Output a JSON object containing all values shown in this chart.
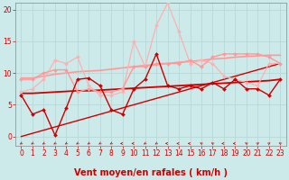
{
  "x": [
    0,
    1,
    2,
    3,
    4,
    5,
    6,
    7,
    8,
    9,
    10,
    11,
    12,
    13,
    14,
    15,
    16,
    17,
    18,
    19,
    20,
    21,
    22,
    23
  ],
  "bg_color": "#cceaea",
  "grid_color": "#aad4d4",
  "xlabel": "Vent moyen/en rafales ( km/h )",
  "xlabel_color": "#cc0000",
  "xlabel_fontsize": 7,
  "ylim": [
    -1.5,
    21
  ],
  "xlim": [
    -0.5,
    23.5
  ],
  "yticks": [
    0,
    5,
    10,
    15,
    20
  ],
  "xticks": [
    0,
    1,
    2,
    3,
    4,
    5,
    6,
    7,
    8,
    9,
    10,
    11,
    12,
    13,
    14,
    15,
    16,
    17,
    18,
    19,
    20,
    21,
    22,
    23
  ],
  "series": [
    {
      "name": "light_pink_jagged",
      "y": [
        7.0,
        7.5,
        9.0,
        12.0,
        11.5,
        12.5,
        8.0,
        6.5,
        6.5,
        7.0,
        15.0,
        11.0,
        17.5,
        21.0,
        16.5,
        11.5,
        12.0,
        11.5,
        9.5,
        9.0,
        8.5,
        8.0,
        11.5,
        11.5
      ],
      "color": "#ffb0b0",
      "lw": 0.9,
      "marker": "D",
      "ms": 2.0
    },
    {
      "name": "pink_trend_upper",
      "y": [
        9.2,
        9.2,
        9.5,
        9.8,
        10.0,
        10.2,
        10.3,
        10.4,
        10.6,
        10.8,
        11.0,
        11.2,
        11.3,
        11.5,
        11.7,
        11.8,
        12.0,
        12.2,
        12.3,
        12.5,
        12.6,
        12.7,
        12.8,
        12.8
      ],
      "color": "#ff9999",
      "lw": 1.2,
      "marker": null,
      "ms": 0
    },
    {
      "name": "pink_jagged",
      "y": [
        9.0,
        9.0,
        10.0,
        10.5,
        10.5,
        7.0,
        7.5,
        7.0,
        7.0,
        7.5,
        11.0,
        11.0,
        11.5,
        11.5,
        11.5,
        12.0,
        11.0,
        12.5,
        13.0,
        13.0,
        13.0,
        13.0,
        12.5,
        11.5
      ],
      "color": "#ff9999",
      "lw": 1.0,
      "marker": "D",
      "ms": 2.0
    },
    {
      "name": "red_trend_upper",
      "y": [
        6.8,
        6.8,
        6.9,
        7.0,
        7.1,
        7.2,
        7.2,
        7.3,
        7.4,
        7.5,
        7.6,
        7.7,
        7.8,
        7.9,
        8.0,
        8.1,
        8.2,
        8.3,
        8.4,
        8.5,
        8.6,
        8.7,
        8.8,
        9.0
      ],
      "color": "#cc0000",
      "lw": 1.3,
      "marker": null,
      "ms": 0
    },
    {
      "name": "red_jagged",
      "y": [
        6.5,
        3.5,
        4.2,
        0.2,
        4.5,
        9.0,
        9.2,
        8.0,
        4.2,
        3.5,
        7.5,
        9.0,
        13.0,
        8.0,
        7.5,
        8.0,
        7.5,
        8.5,
        7.5,
        9.0,
        7.5,
        7.5,
        6.5,
        9.0
      ],
      "color": "#cc0000",
      "lw": 1.0,
      "marker": "D",
      "ms": 2.0
    },
    {
      "name": "red_trend_lower",
      "y": [
        0.0,
        0.5,
        1.0,
        1.5,
        2.0,
        2.5,
        3.0,
        3.5,
        4.0,
        4.5,
        5.0,
        5.5,
        6.0,
        6.5,
        7.0,
        7.5,
        8.0,
        8.5,
        9.0,
        9.5,
        10.0,
        10.5,
        11.0,
        11.5
      ],
      "color": "#cc0000",
      "lw": 1.0,
      "marker": null,
      "ms": 0
    }
  ],
  "arrow_angles": [
    225,
    225,
    225,
    225,
    225,
    225,
    225,
    225,
    225,
    270,
    270,
    225,
    225,
    270,
    270,
    270,
    315,
    315,
    270,
    270,
    315,
    45,
    45,
    315
  ]
}
